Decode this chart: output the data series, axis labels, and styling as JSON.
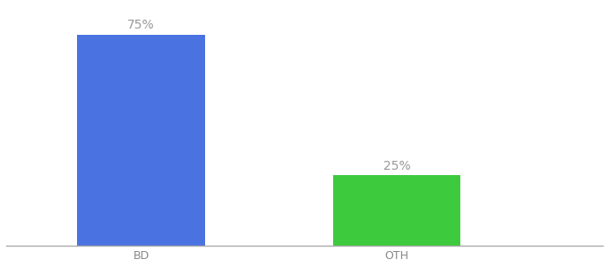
{
  "categories": [
    "BD",
    "OTH"
  ],
  "values": [
    75,
    25
  ],
  "bar_colors": [
    "#4a72e0",
    "#3dca3d"
  ],
  "label_texts": [
    "75%",
    "25%"
  ],
  "label_color": "#999999",
  "label_fontsize": 10,
  "xlabel_fontsize": 9,
  "tick_color": "#888888",
  "bar_width": 0.18,
  "x_positions": [
    0.27,
    0.63
  ],
  "xlim": [
    0.08,
    0.92
  ],
  "ylim": [
    0,
    85
  ],
  "background_color": "#ffffff",
  "spine_color": "#aaaaaa"
}
